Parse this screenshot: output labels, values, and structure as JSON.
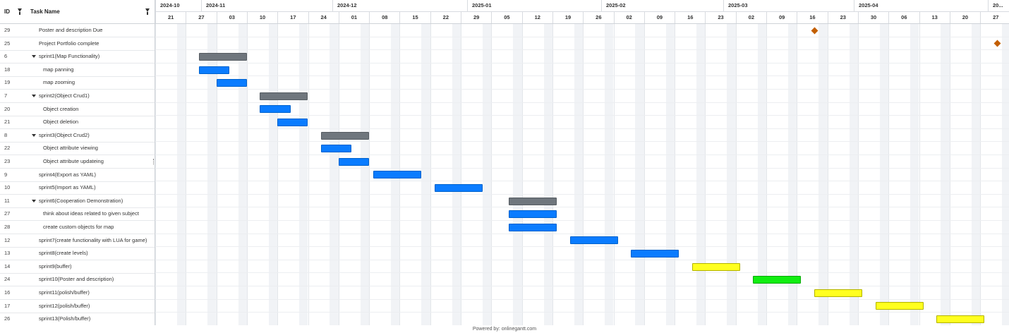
{
  "header": {
    "id_label": "ID",
    "task_name_label": "Task Name"
  },
  "months": [
    {
      "label": "2024-10"
    },
    {
      "label": "2024-11"
    },
    {
      "label": "2024-12"
    },
    {
      "label": "2025-01"
    },
    {
      "label": "2025-02"
    },
    {
      "label": "2025-03"
    },
    {
      "label": "2025-04"
    },
    {
      "label": "20..."
    }
  ],
  "weeks": [
    "21",
    "27",
    "03",
    "10",
    "17",
    "24",
    "01",
    "08",
    "15",
    "22",
    "29",
    "05",
    "12",
    "19",
    "26",
    "02",
    "09",
    "16",
    "23",
    "02",
    "09",
    "16",
    "23",
    "30",
    "06",
    "13",
    "20",
    "27"
  ],
  "rows": [
    {
      "id": "29",
      "name": "Poster and description Due",
      "level": 0,
      "type": "milestone",
      "milestone_date": "2025-03-17"
    },
    {
      "id": "25",
      "name": "Project Portfolio complete",
      "level": 0,
      "type": "milestone",
      "milestone_date": "2025-04-28"
    },
    {
      "id": "6",
      "name": "sprint1(Map Functionality)",
      "level": 0,
      "type": "group",
      "collapsible": true,
      "start": "2024-10-27",
      "end": "2024-11-07"
    },
    {
      "id": "18",
      "name": "map panning",
      "level": 1,
      "type": "task",
      "start": "2024-10-27",
      "end": "2024-11-03"
    },
    {
      "id": "19",
      "name": "map zooming",
      "level": 1,
      "type": "task",
      "start": "2024-10-31",
      "end": "2024-11-07"
    },
    {
      "id": "7",
      "name": "sprint2(Object Crud1)",
      "level": 0,
      "type": "group",
      "collapsible": true,
      "start": "2024-11-10",
      "end": "2024-11-21"
    },
    {
      "id": "20",
      "name": "Object creation",
      "level": 1,
      "type": "task",
      "start": "2024-11-10",
      "end": "2024-11-17"
    },
    {
      "id": "21",
      "name": "Object deletion",
      "level": 1,
      "type": "task",
      "start": "2024-11-14",
      "end": "2024-11-21"
    },
    {
      "id": "8",
      "name": "sprint3(Object Crud2)",
      "level": 0,
      "type": "group",
      "collapsible": true,
      "start": "2024-11-24",
      "end": "2024-12-05"
    },
    {
      "id": "22",
      "name": "Object attribute viewing",
      "level": 1,
      "type": "task",
      "start": "2024-11-24",
      "end": "2024-12-01"
    },
    {
      "id": "23",
      "name": "Object attribute updateing",
      "level": 1,
      "type": "task",
      "start": "2024-11-28",
      "end": "2024-12-05"
    },
    {
      "id": "9",
      "name": "sprint4(Export as YAML)",
      "level": 0,
      "type": "task",
      "start": "2024-12-06",
      "end": "2024-12-17"
    },
    {
      "id": "10",
      "name": "sprint5(Import as YAML)",
      "level": 0,
      "type": "task",
      "start": "2024-12-20",
      "end": "2024-12-31"
    },
    {
      "id": "11",
      "name": "sprint6(Cooperation Demonstration)",
      "level": 0,
      "type": "group",
      "collapsible": true,
      "start": "2025-01-06",
      "end": "2025-01-17"
    },
    {
      "id": "27",
      "name": "think about ideas related to given subject",
      "level": 1,
      "type": "task",
      "start": "2025-01-06",
      "end": "2025-01-17"
    },
    {
      "id": "28",
      "name": "create custom objects for map",
      "level": 1,
      "type": "task",
      "start": "2025-01-06",
      "end": "2025-01-17"
    },
    {
      "id": "12",
      "name": "sprint7(create functionality with LUA for game)",
      "level": 0,
      "type": "task",
      "start": "2025-01-20",
      "end": "2025-01-31"
    },
    {
      "id": "13",
      "name": "sprint8(create levels)",
      "level": 0,
      "type": "task",
      "start": "2025-02-03",
      "end": "2025-02-14"
    },
    {
      "id": "14",
      "name": "sprint9(buffer)",
      "level": 0,
      "type": "task",
      "color": "#ffff1f",
      "start": "2025-02-17",
      "end": "2025-02-28"
    },
    {
      "id": "24",
      "name": "sprint10(Poster and description)",
      "level": 0,
      "type": "task",
      "color": "#11ee11",
      "start": "2025-03-03",
      "end": "2025-03-14"
    },
    {
      "id": "16",
      "name": "sprint11(polish/buffer)",
      "level": 0,
      "type": "task",
      "color": "#ffff1f",
      "start": "2025-03-17",
      "end": "2025-03-28"
    },
    {
      "id": "17",
      "name": "sprint12(polish/buffer)",
      "level": 0,
      "type": "task",
      "color": "#ffff1f",
      "start": "2025-03-31",
      "end": "2025-04-11"
    },
    {
      "id": "26",
      "name": "sprint13(Polish/buffer)",
      "level": 0,
      "type": "task",
      "color": "#ffff1f",
      "start": "2025-04-14",
      "end": "2025-04-25"
    }
  ],
  "footer": {
    "text": "Powered by: onlinegantt.com"
  }
}
